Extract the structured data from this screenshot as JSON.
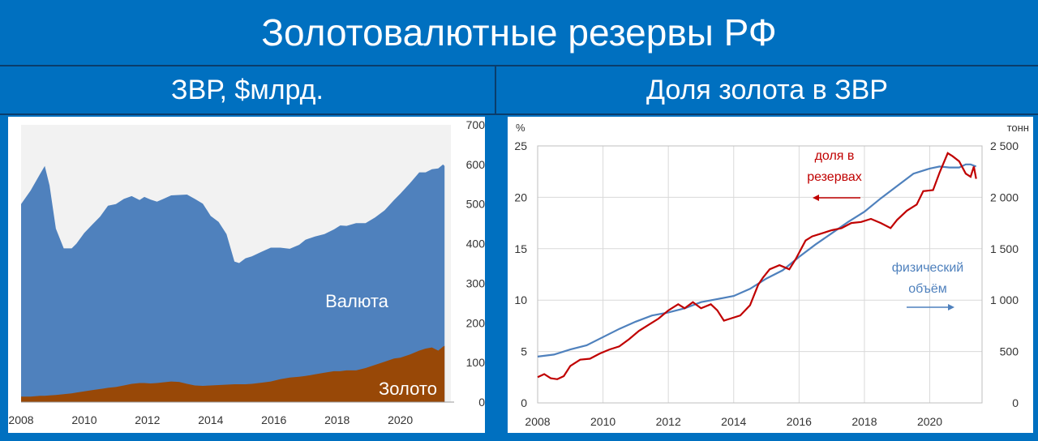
{
  "title": "Золотовалютные резервы РФ",
  "left_title": "ЗВР, $млрд.",
  "right_title": "Доля золота в ЗВР",
  "colors": {
    "currency": "#4f81bd",
    "gold": "#984807",
    "share": "#c00000",
    "volume": "#4f81bd",
    "frame": "#0070c0"
  },
  "chart_data": [
    {
      "type": "area",
      "stacked": true,
      "x": [
        2008.0,
        2008.3,
        2008.6,
        2008.75,
        2008.9,
        2009.1,
        2009.35,
        2009.6,
        2009.75,
        2010.0,
        2010.25,
        2010.5,
        2010.75,
        2011.0,
        2011.25,
        2011.5,
        2011.75,
        2011.9,
        2012.1,
        2012.3,
        2012.5,
        2012.75,
        2013.0,
        2013.25,
        2013.5,
        2013.75,
        2014.0,
        2014.25,
        2014.5,
        2014.75,
        2014.9,
        2015.1,
        2015.3,
        2015.6,
        2015.9,
        2016.2,
        2016.5,
        2016.8,
        2017.0,
        2017.3,
        2017.6,
        2017.9,
        2018.1,
        2018.3,
        2018.6,
        2018.9,
        2019.2,
        2019.5,
        2019.8,
        2020.0,
        2020.3,
        2020.6,
        2020.8,
        2021.0,
        2021.2,
        2021.35,
        2021.4
      ],
      "series": [
        {
          "name": "Золото",
          "values": [
            14,
            14,
            16,
            16,
            17,
            18,
            20,
            22,
            24,
            27,
            30,
            33,
            36,
            38,
            42,
            46,
            48,
            48,
            47,
            48,
            50,
            52,
            51,
            46,
            42,
            41,
            42,
            43,
            44,
            45,
            45,
            45,
            46,
            49,
            52,
            58,
            62,
            64,
            66,
            70,
            74,
            78,
            78,
            80,
            80,
            86,
            94,
            102,
            110,
            112,
            120,
            130,
            135,
            138,
            130,
            140,
            142
          ]
        },
        {
          "name": "Валюта",
          "values": [
            486,
            520,
            560,
            580,
            530,
            420,
            368,
            366,
            376,
            400,
            418,
            435,
            460,
            462,
            471,
            474,
            462,
            470,
            464,
            458,
            463,
            470,
            472,
            478,
            471,
            460,
            428,
            412,
            380,
            310,
            306,
            318,
            322,
            330,
            338,
            332,
            325,
            333,
            344,
            348,
            350,
            358,
            368,
            365,
            372,
            366,
            372,
            382,
            400,
            414,
            432,
            450,
            445,
            450,
            460,
            460,
            454
          ]
        }
      ],
      "labels": [
        "Валюта",
        "Золото"
      ],
      "x_ticks": [
        "2008",
        "2010",
        "2012",
        "2014",
        "2016",
        "2018",
        "2020"
      ],
      "y_ticks": [
        "0",
        "100",
        "200",
        "300",
        "400",
        "500",
        "600",
        "700"
      ],
      "xlim": [
        2008,
        2021.6
      ],
      "ylim": [
        0,
        700
      ]
    },
    {
      "type": "line",
      "series": [
        {
          "name": "доля в резервах",
          "axis": "left",
          "x": [
            2008.0,
            2008.2,
            2008.4,
            2008.6,
            2008.8,
            2009.0,
            2009.3,
            2009.6,
            2009.9,
            2010.2,
            2010.5,
            2010.8,
            2011.1,
            2011.4,
            2011.7,
            2012.0,
            2012.3,
            2012.5,
            2012.75,
            2013.0,
            2013.3,
            2013.5,
            2013.7,
            2013.9,
            2014.2,
            2014.5,
            2014.75,
            2014.9,
            2015.1,
            2015.4,
            2015.7,
            2015.9,
            2016.2,
            2016.4,
            2016.7,
            2017.0,
            2017.3,
            2017.6,
            2017.9,
            2018.2,
            2018.5,
            2018.8,
            2019.0,
            2019.3,
            2019.6,
            2019.8,
            2020.1,
            2020.3,
            2020.55,
            2020.7,
            2020.9,
            2021.1,
            2021.25,
            2021.35,
            2021.42
          ],
          "values": [
            2.5,
            2.8,
            2.4,
            2.3,
            2.6,
            3.6,
            4.2,
            4.3,
            4.8,
            5.2,
            5.5,
            6.2,
            7.0,
            7.6,
            8.2,
            9.0,
            9.6,
            9.2,
            9.8,
            9.2,
            9.6,
            9.0,
            8.0,
            8.2,
            8.5,
            9.5,
            11.5,
            12.2,
            13.0,
            13.4,
            13.0,
            14.0,
            15.8,
            16.2,
            16.5,
            16.8,
            17.0,
            17.5,
            17.6,
            17.9,
            17.5,
            17.0,
            17.8,
            18.7,
            19.3,
            20.6,
            20.7,
            22.4,
            24.3,
            24.0,
            23.5,
            22.3,
            22.0,
            23.0,
            21.8
          ]
        },
        {
          "name": "физический объём",
          "axis": "right",
          "x": [
            2008.0,
            2008.5,
            2009.0,
            2009.5,
            2010.0,
            2010.5,
            2011.0,
            2011.5,
            2012.0,
            2012.5,
            2013.0,
            2013.5,
            2014.0,
            2014.5,
            2015.0,
            2015.5,
            2016.0,
            2016.5,
            2017.0,
            2017.5,
            2018.0,
            2018.5,
            2019.0,
            2019.5,
            2020.0,
            2020.3,
            2020.6,
            2020.9,
            2021.1,
            2021.25,
            2021.42
          ],
          "values": [
            450,
            470,
            520,
            560,
            640,
            720,
            790,
            850,
            880,
            920,
            980,
            1010,
            1040,
            1110,
            1210,
            1290,
            1420,
            1540,
            1650,
            1760,
            1860,
            1990,
            2110,
            2230,
            2280,
            2300,
            2290,
            2290,
            2320,
            2320,
            2300
          ]
        }
      ],
      "left_axis": {
        "unit": "%",
        "ticks": [
          "0",
          "5",
          "10",
          "15",
          "20",
          "25"
        ],
        "ylim": [
          0,
          25
        ]
      },
      "right_axis": {
        "unit": "тонн",
        "ticks": [
          "0",
          "500",
          "1 000",
          "1 500",
          "2 000",
          "2 500"
        ],
        "ylim": [
          0,
          2500
        ]
      },
      "x_ticks": [
        "2008",
        "2010",
        "2012",
        "2014",
        "2016",
        "2018",
        "2020"
      ],
      "xlim": [
        2008,
        2021.6
      ],
      "grid": true,
      "annotations": {
        "share": "доля в\nрезервах",
        "volume": "физический\nобъём"
      }
    }
  ]
}
